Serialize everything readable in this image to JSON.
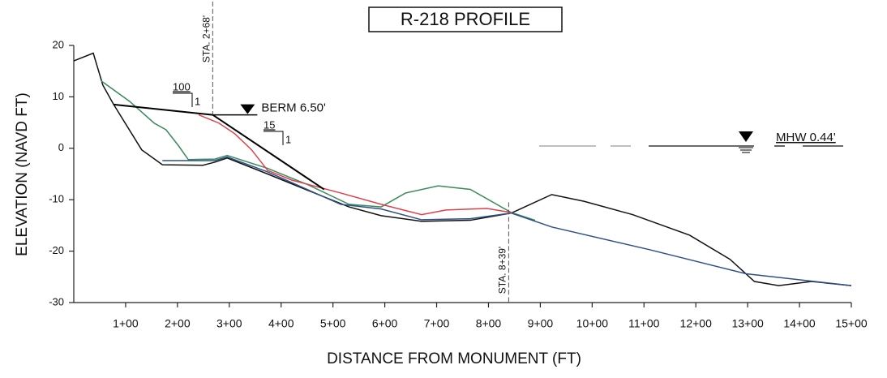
{
  "chart_data": {
    "type": "line",
    "title": "R-218 PROFILE",
    "x_label": "DISTANCE FROM MONUMENT (FT)",
    "y_label": "ELEVATION (NAVD FT)",
    "xlim": [
      0,
      1500
    ],
    "ylim": [
      -30,
      20
    ],
    "xticks": [
      {
        "value": 100,
        "label": "1+00"
      },
      {
        "value": 200,
        "label": "2+00"
      },
      {
        "value": 300,
        "label": "3+00"
      },
      {
        "value": 400,
        "label": "4+00"
      },
      {
        "value": 500,
        "label": "5+00"
      },
      {
        "value": 600,
        "label": "6+00"
      },
      {
        "value": 700,
        "label": "7+00"
      },
      {
        "value": 800,
        "label": "8+00"
      },
      {
        "value": 900,
        "label": "9+00"
      },
      {
        "value": 1000,
        "label": "10+00"
      },
      {
        "value": 1100,
        "label": "11+00"
      },
      {
        "value": 1200,
        "label": "12+00"
      },
      {
        "value": 1300,
        "label": "13+00"
      },
      {
        "value": 1400,
        "label": "14+00"
      },
      {
        "value": 1500,
        "label": "15+00"
      }
    ],
    "yticks": [
      -30,
      -20,
      -10,
      0,
      10,
      20
    ],
    "series": [
      {
        "color": "#111111",
        "x": [
          0,
          37.6,
          56,
          77,
          131,
          171,
          249,
          272,
          296,
          374,
          452,
          531,
          593,
          671,
          765,
          844,
          922,
          984,
          1078,
          1188,
          1266,
          1313,
          1360,
          1423,
          1500
        ],
        "values": [
          17,
          18.5,
          12.3,
          8.5,
          -0.3,
          -3.2,
          -3.3,
          -2.7,
          -1.9,
          -5,
          -8.2,
          -11.4,
          -13.1,
          -14.2,
          -14,
          -12.6,
          -9,
          -10.3,
          -12.9,
          -16.9,
          -21.6,
          -25.9,
          -26.7,
          -25.9,
          -26.7
        ]
      },
      {
        "color": "#3a8a5a",
        "x": [
          53,
          108,
          155,
          178,
          202,
          221,
          272,
          296,
          374,
          452,
          531,
          593,
          640,
          703,
          765,
          844,
          890
        ],
        "values": [
          13.1,
          9.1,
          4.9,
          3.6,
          0.5,
          -2.2,
          -2.1,
          -1.4,
          -3.9,
          -7.1,
          -10.9,
          -11.4,
          -8.7,
          -7.3,
          -8,
          -12.5,
          -14
        ]
      },
      {
        "color": "#2f4f8a",
        "x": [
          171,
          272,
          296,
          374,
          515,
          593,
          671,
          765,
          844,
          922,
          1110,
          1297,
          1500
        ],
        "values": [
          -2.4,
          -2.4,
          -1.7,
          -4.6,
          -10.9,
          -11.8,
          -13.9,
          -13.7,
          -12.6,
          -15.3,
          -19.7,
          -24.4,
          -26.7
        ]
      },
      {
        "color": "#e0404a",
        "x": [
          241,
          280,
          311,
          343,
          374,
          421,
          515,
          593,
          671,
          718,
          797,
          844
        ],
        "values": [
          6.5,
          4.9,
          2.8,
          -0.3,
          -4.3,
          -6.2,
          -8.7,
          -10.9,
          -12.9,
          -12,
          -11.7,
          -12.5
        ]
      },
      {
        "color": "#000000",
        "x": [
          77,
          268,
          483
        ],
        "values": [
          8.5,
          6.5,
          -8
        ]
      }
    ],
    "berm": {
      "label": "BERM 6.50'",
      "value": 6.5
    },
    "mhw": {
      "label": "MHW 0.44'",
      "value": 0.44
    },
    "stations": [
      {
        "label": "STA. 2+68'",
        "x": 268
      },
      {
        "label": "STA. 8+39'",
        "x": 839
      }
    ],
    "slopes": [
      {
        "run": "100",
        "rise": "1"
      },
      {
        "run": "15",
        "rise": "1"
      }
    ]
  }
}
